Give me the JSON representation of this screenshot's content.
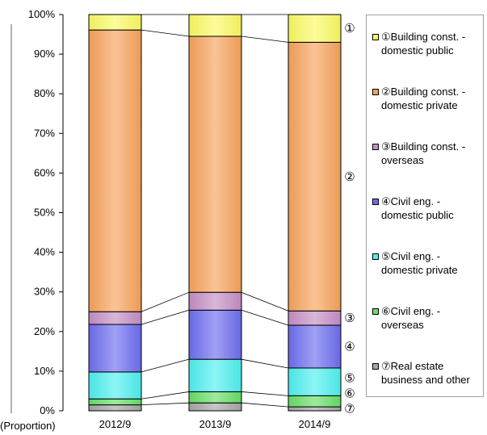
{
  "chart_data": {
    "type": "bar",
    "stacked": true,
    "categories": [
      "2012/9",
      "2013/9",
      "2014/9"
    ],
    "ylabel": "(Proportion)",
    "ylim": [
      0,
      100
    ],
    "yticks": [
      "0%",
      "10%",
      "20%",
      "30%",
      "40%",
      "50%",
      "60%",
      "70%",
      "80%",
      "90%",
      "100%"
    ],
    "series": [
      {
        "marker": "⑦",
        "name": "⑦Real estate business and other",
        "color": "#a6a6a6",
        "values": [
          1.5,
          2.0,
          1.0
        ]
      },
      {
        "marker": "⑥",
        "name": "⑥Civil eng. - overseas",
        "color": "#66e066",
        "values": [
          1.5,
          2.8,
          2.8
        ]
      },
      {
        "marker": "⑤",
        "name": "⑤Civil eng. - domestic  private",
        "color": "#4ff0f0",
        "values": [
          6.8,
          8.2,
          7.0
        ]
      },
      {
        "marker": "④",
        "name": "④Civil eng. - domestic public",
        "color": "#6d6df0",
        "values": [
          12.0,
          12.4,
          10.8
        ]
      },
      {
        "marker": "③",
        "name": "③Building const. - overseas",
        "color": "#c58fc5",
        "values": [
          3.2,
          4.5,
          3.6
        ]
      },
      {
        "marker": "②",
        "name": "②Building const. - domestic private",
        "color": "#f7a35c",
        "values": [
          71.1,
          64.6,
          67.8
        ]
      },
      {
        "marker": "①",
        "name": "①Building const. - domestic public",
        "color": "#fafa64",
        "values": [
          3.9,
          5.5,
          7.0
        ]
      }
    ],
    "grid": false,
    "legend_position": "right"
  }
}
